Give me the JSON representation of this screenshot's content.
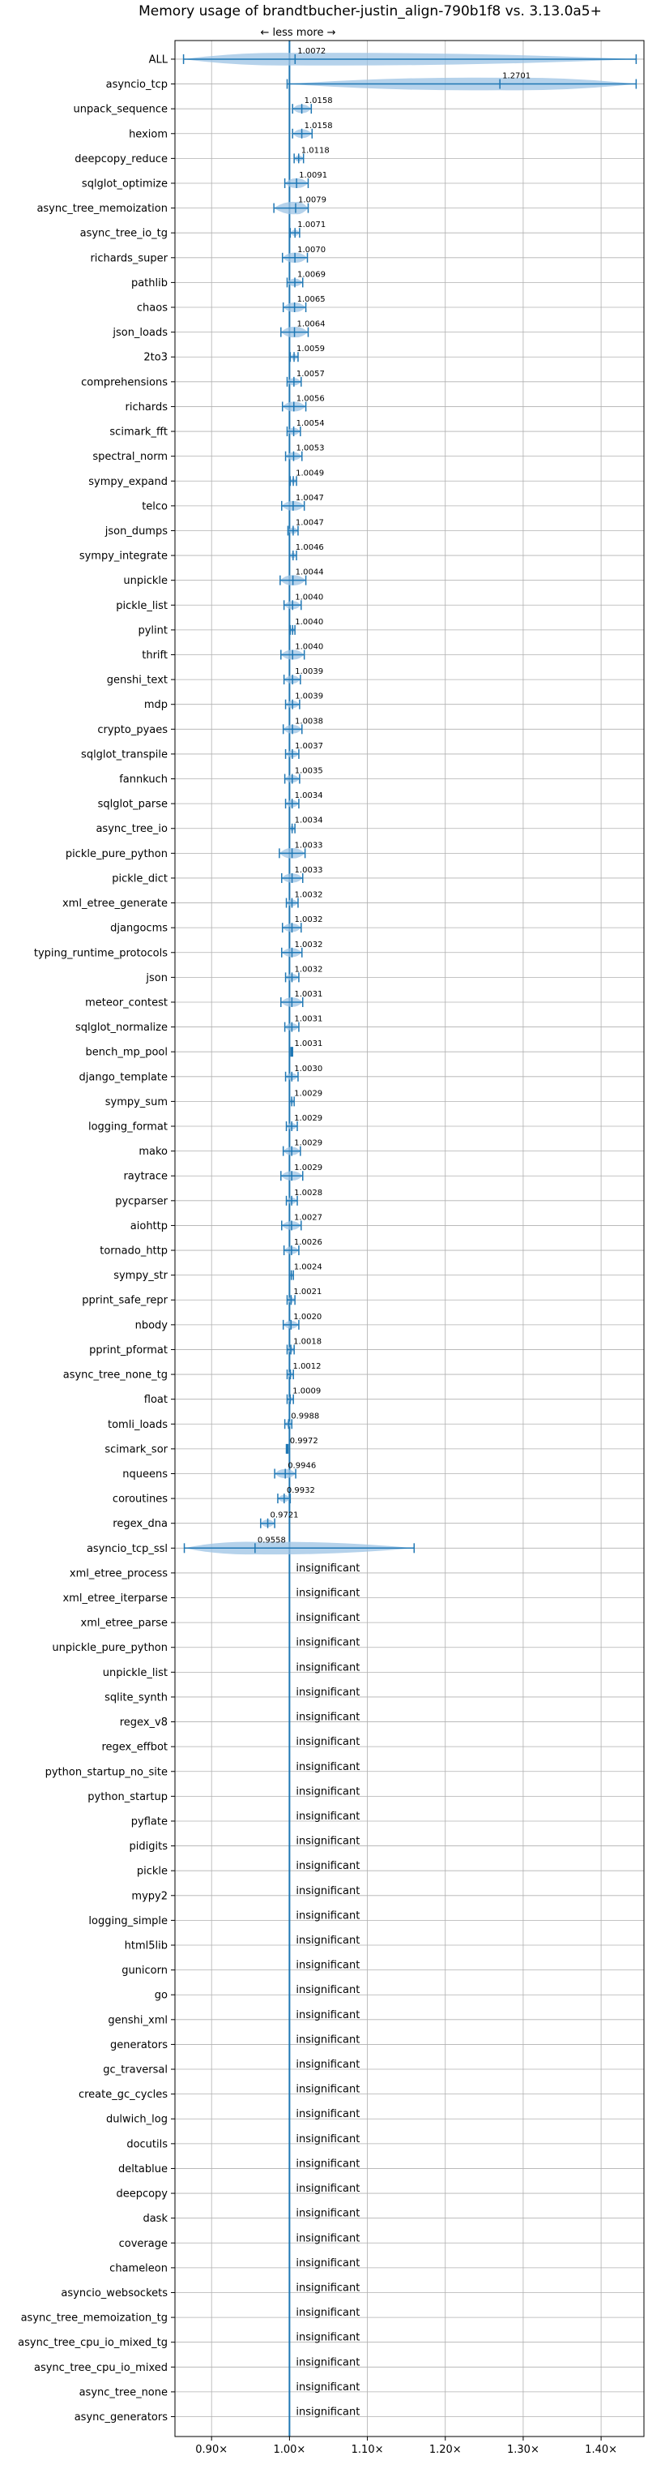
{
  "chart_data": {
    "type": "violin",
    "title": "Memory usage of brandtbucher-justin_align-790b1f8 vs. 3.13.0a5+",
    "direction_hint": "← less   more →",
    "x_ticks": [
      "0.90×",
      "1.00×",
      "1.10×",
      "1.20×",
      "1.30×",
      "1.40×"
    ],
    "x_tick_values": [
      0.9,
      1.0,
      1.1,
      1.2,
      1.3,
      1.4
    ],
    "xlim": [
      0.853,
      1.455
    ],
    "grid": true,
    "significant": [
      {
        "name": "ALL",
        "value": 1.0072,
        "label": "1.0072",
        "min": 0.864,
        "max": 1.445
      },
      {
        "name": "asyncio_tcp",
        "value": 1.2701,
        "label": "1.2701",
        "min": 0.997,
        "max": 1.445
      },
      {
        "name": "unpack_sequence",
        "value": 1.0158,
        "label": "1.0158",
        "min": 1.004,
        "max": 1.028
      },
      {
        "name": "hexiom",
        "value": 1.0158,
        "label": "1.0158",
        "min": 1.004,
        "max": 1.029
      },
      {
        "name": "deepcopy_reduce",
        "value": 1.0118,
        "label": "1.0118",
        "min": 1.006,
        "max": 1.018
      },
      {
        "name": "sqlglot_optimize",
        "value": 1.0091,
        "label": "1.0091",
        "min": 0.994,
        "max": 1.024
      },
      {
        "name": "async_tree_memoization",
        "value": 1.0079,
        "label": "1.0079",
        "min": 0.98,
        "max": 1.024
      },
      {
        "name": "async_tree_io_tg",
        "value": 1.0071,
        "label": "1.0071",
        "min": 1.001,
        "max": 1.013
      },
      {
        "name": "richards_super",
        "value": 1.007,
        "label": "1.0070",
        "min": 0.991,
        "max": 1.023
      },
      {
        "name": "pathlib",
        "value": 1.0069,
        "label": "1.0069",
        "min": 0.997,
        "max": 1.017
      },
      {
        "name": "chaos",
        "value": 1.0065,
        "label": "1.0065",
        "min": 0.992,
        "max": 1.021
      },
      {
        "name": "json_loads",
        "value": 1.0064,
        "label": "1.0064",
        "min": 0.989,
        "max": 1.024
      },
      {
        "name": "2to3",
        "value": 1.0059,
        "label": "1.0059",
        "min": 1.001,
        "max": 1.011
      },
      {
        "name": "comprehensions",
        "value": 1.0057,
        "label": "1.0057",
        "min": 0.997,
        "max": 1.015
      },
      {
        "name": "richards",
        "value": 1.0056,
        "label": "1.0056",
        "min": 0.991,
        "max": 1.021
      },
      {
        "name": "scimark_fft",
        "value": 1.0054,
        "label": "1.0054",
        "min": 0.997,
        "max": 1.014
      },
      {
        "name": "spectral_norm",
        "value": 1.0053,
        "label": "1.0053",
        "min": 0.995,
        "max": 1.016
      },
      {
        "name": "sympy_expand",
        "value": 1.0049,
        "label": "1.0049",
        "min": 1.001,
        "max": 1.009
      },
      {
        "name": "telco",
        "value": 1.0047,
        "label": "1.0047",
        "min": 0.99,
        "max": 1.019
      },
      {
        "name": "json_dumps",
        "value": 1.0047,
        "label": "1.0047",
        "min": 0.998,
        "max": 1.011
      },
      {
        "name": "sympy_integrate",
        "value": 1.0046,
        "label": "1.0046",
        "min": 1.0,
        "max": 1.009
      },
      {
        "name": "unpickle",
        "value": 1.0044,
        "label": "1.0044",
        "min": 0.988,
        "max": 1.021
      },
      {
        "name": "pickle_list",
        "value": 1.004,
        "label": "1.0040",
        "min": 0.993,
        "max": 1.015
      },
      {
        "name": "pylint",
        "value": 1.004,
        "label": "1.0040",
        "min": 1.001,
        "max": 1.007
      },
      {
        "name": "thrift",
        "value": 1.004,
        "label": "1.0040",
        "min": 0.989,
        "max": 1.019
      },
      {
        "name": "genshi_text",
        "value": 1.0039,
        "label": "1.0039",
        "min": 0.993,
        "max": 1.014
      },
      {
        "name": "mdp",
        "value": 1.0039,
        "label": "1.0039",
        "min": 0.995,
        "max": 1.013
      },
      {
        "name": "crypto_pyaes",
        "value": 1.0038,
        "label": "1.0038",
        "min": 0.992,
        "max": 1.016
      },
      {
        "name": "sqlglot_transpile",
        "value": 1.0037,
        "label": "1.0037",
        "min": 0.995,
        "max": 1.012
      },
      {
        "name": "fannkuch",
        "value": 1.0035,
        "label": "1.0035",
        "min": 0.994,
        "max": 1.013
      },
      {
        "name": "sqlglot_parse",
        "value": 1.0034,
        "label": "1.0034",
        "min": 0.995,
        "max": 1.012
      },
      {
        "name": "async_tree_io",
        "value": 1.0034,
        "label": "1.0034",
        "min": 1.0,
        "max": 1.007
      },
      {
        "name": "pickle_pure_python",
        "value": 1.0033,
        "label": "1.0033",
        "min": 0.987,
        "max": 1.02
      },
      {
        "name": "pickle_dict",
        "value": 1.0033,
        "label": "1.0033",
        "min": 0.99,
        "max": 1.017
      },
      {
        "name": "xml_etree_generate",
        "value": 1.0032,
        "label": "1.0032",
        "min": 0.996,
        "max": 1.011
      },
      {
        "name": "djangocms",
        "value": 1.0032,
        "label": "1.0032",
        "min": 0.991,
        "max": 1.015
      },
      {
        "name": "typing_runtime_protocols",
        "value": 1.0032,
        "label": "1.0032",
        "min": 0.99,
        "max": 1.016
      },
      {
        "name": "json",
        "value": 1.0032,
        "label": "1.0032",
        "min": 0.995,
        "max": 1.012
      },
      {
        "name": "meteor_contest",
        "value": 1.0031,
        "label": "1.0031",
        "min": 0.989,
        "max": 1.017
      },
      {
        "name": "sqlglot_normalize",
        "value": 1.0031,
        "label": "1.0031",
        "min": 0.994,
        "max": 1.012
      },
      {
        "name": "bench_mp_pool",
        "value": 1.0031,
        "label": "1.0031",
        "min": 1.002,
        "max": 1.004
      },
      {
        "name": "django_template",
        "value": 1.003,
        "label": "1.0030",
        "min": 0.995,
        "max": 1.011
      },
      {
        "name": "sympy_sum",
        "value": 1.0029,
        "label": "1.0029",
        "min": 1.0,
        "max": 1.006
      },
      {
        "name": "logging_format",
        "value": 1.0029,
        "label": "1.0029",
        "min": 0.996,
        "max": 1.01
      },
      {
        "name": "mako",
        "value": 1.0029,
        "label": "1.0029",
        "min": 0.992,
        "max": 1.014
      },
      {
        "name": "raytrace",
        "value": 1.0029,
        "label": "1.0029",
        "min": 0.989,
        "max": 1.017
      },
      {
        "name": "pycparser",
        "value": 1.0028,
        "label": "1.0028",
        "min": 0.996,
        "max": 1.01
      },
      {
        "name": "aiohttp",
        "value": 1.0027,
        "label": "1.0027",
        "min": 0.99,
        "max": 1.015
      },
      {
        "name": "tornado_http",
        "value": 1.0026,
        "label": "1.0026",
        "min": 0.993,
        "max": 1.012
      },
      {
        "name": "sympy_str",
        "value": 1.0024,
        "label": "1.0024",
        "min": 1.0,
        "max": 1.005
      },
      {
        "name": "pprint_safe_repr",
        "value": 1.0021,
        "label": "1.0021",
        "min": 0.997,
        "max": 1.007
      },
      {
        "name": "nbody",
        "value": 1.002,
        "label": "1.0020",
        "min": 0.992,
        "max": 1.012
      },
      {
        "name": "pprint_pformat",
        "value": 1.0018,
        "label": "1.0018",
        "min": 0.997,
        "max": 1.006
      },
      {
        "name": "async_tree_none_tg",
        "value": 1.0012,
        "label": "1.0012",
        "min": 0.997,
        "max": 1.005
      },
      {
        "name": "float",
        "value": 1.0009,
        "label": "1.0009",
        "min": 0.997,
        "max": 1.005
      },
      {
        "name": "tomli_loads",
        "value": 0.9988,
        "label": "0.9988",
        "min": 0.994,
        "max": 1.003
      },
      {
        "name": "scimark_sor",
        "value": 0.9972,
        "label": "0.9972",
        "min": 0.996,
        "max": 0.998
      },
      {
        "name": "nqueens",
        "value": 0.9946,
        "label": "0.9946",
        "min": 0.981,
        "max": 1.008
      },
      {
        "name": "coroutines",
        "value": 0.9932,
        "label": "0.9932",
        "min": 0.985,
        "max": 1.001
      },
      {
        "name": "regex_dna",
        "value": 0.9721,
        "label": "0.9721",
        "min": 0.963,
        "max": 0.981
      },
      {
        "name": "asyncio_tcp_ssl",
        "value": 0.9558,
        "label": "0.9558",
        "min": 0.865,
        "max": 1.16
      }
    ],
    "insignificant_label": "insignificant",
    "insignificant": [
      "xml_etree_process",
      "xml_etree_iterparse",
      "xml_etree_parse",
      "unpickle_pure_python",
      "unpickle_list",
      "sqlite_synth",
      "regex_v8",
      "regex_effbot",
      "python_startup_no_site",
      "python_startup",
      "pyflate",
      "pidigits",
      "pickle",
      "mypy2",
      "logging_simple",
      "html5lib",
      "gunicorn",
      "go",
      "genshi_xml",
      "generators",
      "gc_traversal",
      "create_gc_cycles",
      "dulwich_log",
      "docutils",
      "deltablue",
      "deepcopy",
      "dask",
      "coverage",
      "chameleon",
      "asyncio_websockets",
      "async_tree_memoization_tg",
      "async_tree_cpu_io_mixed_tg",
      "async_tree_cpu_io_mixed",
      "async_tree_none",
      "async_generators"
    ],
    "colors": {
      "violin_fill": "#9cc3e4",
      "line": "#1f77b4",
      "median_red": "#e0474c",
      "grid": "#b0b0b0",
      "axis": "#000000"
    }
  }
}
